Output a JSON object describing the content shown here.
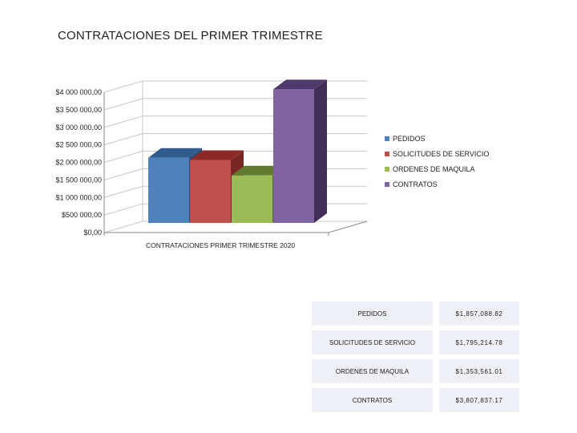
{
  "chart_data": {
    "type": "bar",
    "title": "CONTRATACIONES DEL PRIMER TRIMESTRE",
    "xlabel": "CONTRATACIONES PRIMER TRIMESTRE 2020",
    "ylabel": "",
    "ylim": [
      0,
      4000000
    ],
    "yticks": [
      {
        "value": 0,
        "label": "$0,00"
      },
      {
        "value": 500000,
        "label": "$500 000,00"
      },
      {
        "value": 1000000,
        "label": "$1 000 000,00"
      },
      {
        "value": 1500000,
        "label": "$1 500 000,00"
      },
      {
        "value": 2000000,
        "label": "$2 000 000,00"
      },
      {
        "value": 2500000,
        "label": "$2 500 000,00"
      },
      {
        "value": 3000000,
        "label": "$3 000 000,00"
      },
      {
        "value": 3500000,
        "label": "$3 500 000,00"
      },
      {
        "value": 4000000,
        "label": "$4 000 000,00"
      }
    ],
    "grid": true,
    "legend_position": "right",
    "series": [
      {
        "name": "PEDIDOS",
        "values": [
          1857088.82
        ],
        "color": "#4f81bd",
        "top": "#2f5b8f",
        "side": "#2c4d75"
      },
      {
        "name": "SOLICITUDES DE SERVICIO",
        "values": [
          1795214.78
        ],
        "color": "#c0504d",
        "top": "#8c2a28",
        "side": "#7a2624"
      },
      {
        "name": "ORDENES DE MAQUILA",
        "values": [
          1353561.01
        ],
        "color": "#9bbb59",
        "top": "#627a30",
        "side": "#55692a"
      },
      {
        "name": "CONTRATOS",
        "values": [
          3807837.17
        ],
        "color": "#8064a2",
        "top": "#4f3b6b",
        "side": "#3f2f57"
      }
    ]
  },
  "table": [
    {
      "label": "PEDIDOS",
      "value": "$1,857,088.82"
    },
    {
      "label": "SOLICITUDES DE SERVICIO",
      "value": "$1,795,214.78"
    },
    {
      "label": "ORDENES DE MAQUILA",
      "value": "$1,353,561.01"
    },
    {
      "label": "CONTRATOS",
      "value": "$3,807,837.17"
    }
  ]
}
